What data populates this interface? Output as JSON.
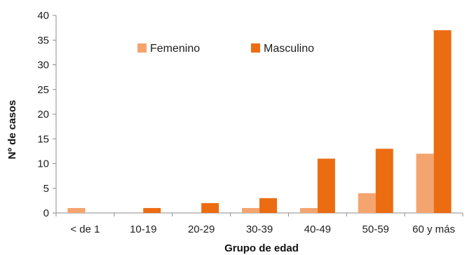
{
  "chart_data": {
    "type": "bar",
    "title": "",
    "xlabel": "Grupo de edad",
    "ylabel": "Nº de casos",
    "ylim": [
      0,
      40
    ],
    "yticks": [
      0,
      5,
      10,
      15,
      20,
      25,
      30,
      35,
      40
    ],
    "categories": [
      "< de 1",
      "10-19",
      "20-29",
      "30-39",
      "40-49",
      "50-59",
      "60 y más"
    ],
    "series": [
      {
        "name": "Femenino",
        "color": "#f4a46e",
        "values": [
          1,
          0,
          0,
          1,
          1,
          4,
          12
        ]
      },
      {
        "name": "Masculino",
        "color": "#ec6c12",
        "values": [
          0,
          1,
          2,
          3,
          11,
          13,
          37
        ]
      }
    ],
    "grid": false,
    "legend_position": "top-center"
  }
}
